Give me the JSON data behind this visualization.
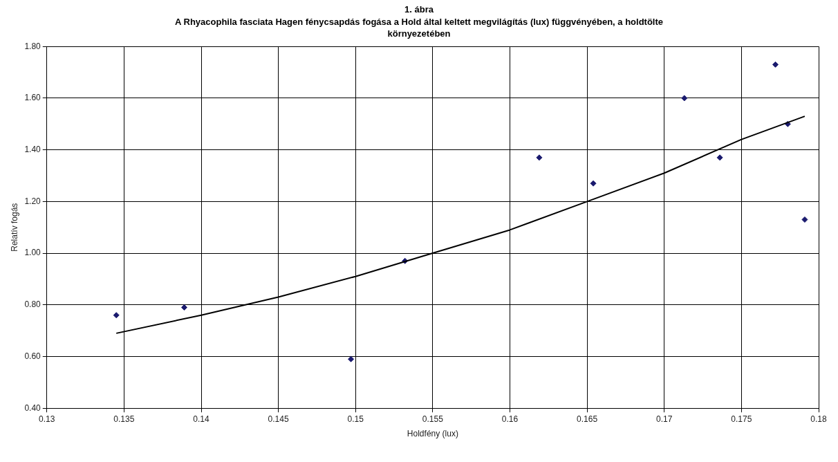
{
  "chart_data": {
    "type": "scatter",
    "title": "1. ábra",
    "subtitle": "A Rhyacophila fasciata Hagen fénycsapdás fogása a Hold által keltett megvilágítás (lux) függvényében, a holdtölte környezetében",
    "xlabel": "Holdfény (lux)",
    "ylabel": "Relatív fogás",
    "series": [
      {
        "color": "#1a1a6e",
        "x": [
          0.1345,
          0.1389,
          0.1497,
          0.1532,
          0.1619,
          0.1654,
          0.1713,
          0.1736,
          0.1772,
          0.178,
          0.1791
        ],
        "values": [
          0.76,
          0.79,
          0.59,
          0.97,
          1.37,
          1.27,
          1.6,
          1.37,
          1.73,
          1.5,
          1.13
        ]
      },
      {
        "type": "line",
        "color": "#000000",
        "marker": "none",
        "x": [
          0.1345,
          0.14,
          0.145,
          0.15,
          0.155,
          0.16,
          0.165,
          0.17,
          0.175,
          0.1791
        ],
        "values": [
          0.69,
          0.76,
          0.83,
          0.91,
          1.0,
          1.09,
          1.2,
          1.31,
          1.44,
          1.53
        ]
      }
    ],
    "xlim": [
      0.13,
      0.18
    ],
    "xticks": [
      0.13,
      0.135,
      0.14,
      0.145,
      0.15,
      0.155,
      0.16,
      0.165,
      0.17,
      0.175,
      0.18
    ],
    "ylim": [
      0.4,
      1.8
    ],
    "yticks": [
      {
        "value": 0.4,
        "label": "0.40"
      },
      {
        "value": 0.6,
        "label": "0.60"
      },
      {
        "value": 0.8,
        "label": "0.80"
      },
      {
        "value": 1.0,
        "label": "1.00"
      },
      {
        "value": 1.2,
        "label": "1.20"
      },
      {
        "value": 1.4,
        "label": "1.40"
      },
      {
        "value": 1.6,
        "label": "1.60"
      },
      {
        "value": 1.8,
        "label": "1.80"
      }
    ],
    "grid": true,
    "legend": false,
    "marker": "diamond"
  }
}
